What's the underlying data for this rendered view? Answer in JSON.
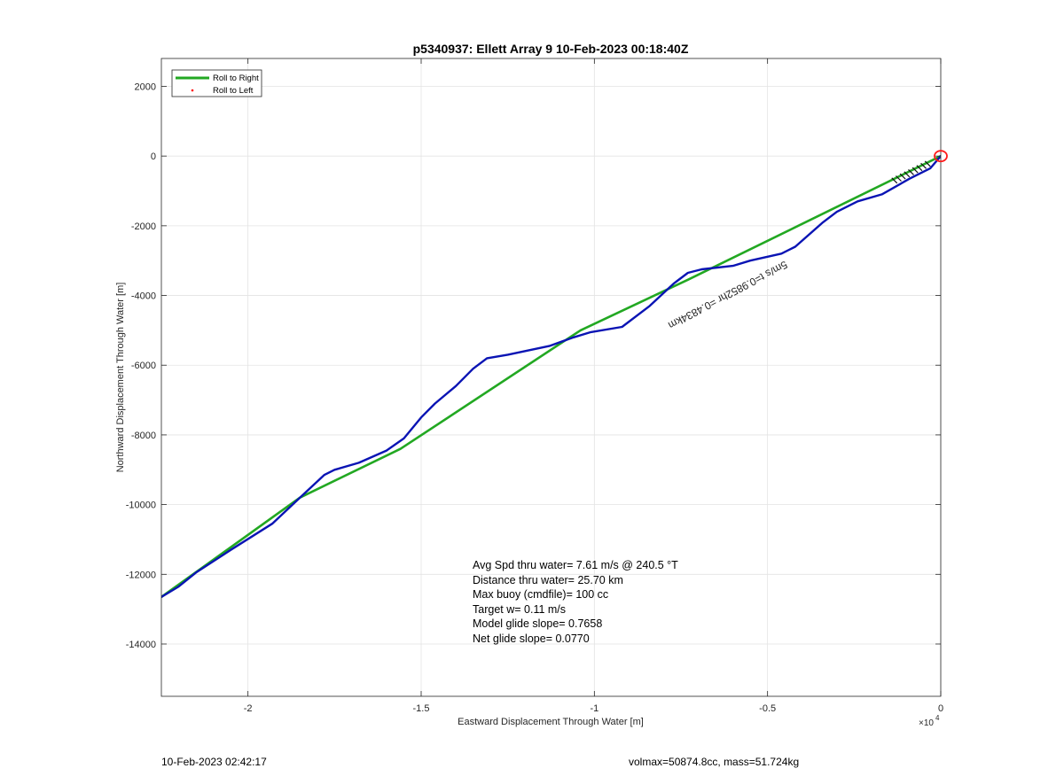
{
  "chart_data": {
    "type": "line",
    "title": "p5340937: Ellett Array 9 10-Feb-2023 00:18:40Z",
    "xlabel": "Eastward Displacement Through Water [m]",
    "ylabel": "Northward Displacement Through Water [m]",
    "x_exponent_label": "×10",
    "x_exponent": "4",
    "xlim": [
      -22500,
      0
    ],
    "ylim": [
      -15500,
      2800
    ],
    "xticks": [
      -2,
      -1.5,
      -1,
      -0.5,
      0
    ],
    "xtick_labels": [
      "-2",
      "-1.5",
      "-1",
      "-0.5",
      "0"
    ],
    "yticks": [
      2000,
      0,
      -2000,
      -4000,
      -6000,
      -8000,
      -10000,
      -12000,
      -14000
    ],
    "ytick_labels": [
      "2000",
      "0",
      "-2000",
      "-4000",
      "-6000",
      "-8000",
      "-10000",
      "-12000",
      "-14000"
    ],
    "grid": true,
    "legend_position": "top-left",
    "legend": [
      {
        "label": "Roll to Right",
        "color": "#22a822",
        "style": "line"
      },
      {
        "label": "Roll to Left",
        "color": "#ff0000",
        "style": "dot"
      }
    ],
    "series": [
      {
        "name": "Roll to Right",
        "color": "#22a822",
        "x": [
          0,
          -7300,
          -10400,
          -15600,
          -18500,
          -22500
        ],
        "y": [
          0,
          -3550,
          -5000,
          -8400,
          -9800,
          -12650
        ]
      },
      {
        "color": "#0a14b4",
        "x": [
          0,
          -300,
          -900,
          -1700,
          -2400,
          -3000,
          -3400,
          -4200,
          -4600,
          -5500,
          -6000,
          -6900,
          -7300,
          -7700,
          -8400,
          -9200,
          -10100,
          -10600,
          -11300,
          -12500,
          -13100,
          -13500,
          -14000,
          -14600,
          -15000,
          -15500,
          -16000,
          -16800,
          -17500,
          -17800,
          -18500,
          -19300,
          -20500,
          -21500,
          -22000,
          -22500
        ],
        "y": [
          0,
          -350,
          -650,
          -1100,
          -1300,
          -1600,
          -1900,
          -2600,
          -2800,
          -3000,
          -3150,
          -3250,
          -3350,
          -3650,
          -4300,
          -4900,
          -5050,
          -5200,
          -5450,
          -5700,
          -5800,
          -6100,
          -6600,
          -7100,
          -7500,
          -8100,
          -8450,
          -8800,
          -9000,
          -9150,
          -9800,
          -10550,
          -11300,
          -11950,
          -12350,
          -12650
        ]
      }
    ],
    "trail_annotation": "5m/s t=0.9852hr =0.4834km",
    "endpoint_marker_color": "#ff1a1a",
    "stats": [
      "Avg Spd thru water=  7.61 m/s @ 240.5 °T",
      "Distance thru water= 25.70 km",
      "Max buoy (cmdfile)= 100 cc",
      "Target w= 0.11 m/s",
      "Model glide slope= 0.7658",
      "Net glide slope= 0.0770"
    ]
  },
  "footer": {
    "left": "10-Feb-2023 02:42:17",
    "right": "volmax=50874.8cc, mass=51.724kg"
  }
}
